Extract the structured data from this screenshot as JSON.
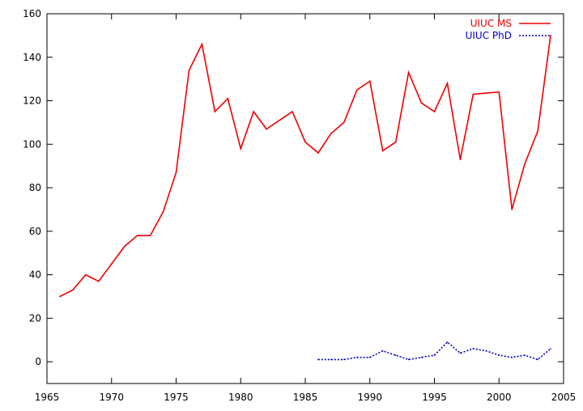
{
  "chart_data": {
    "type": "line",
    "title": "",
    "xlabel": "",
    "ylabel": "",
    "xlim": [
      1965,
      2005
    ],
    "ylim": [
      -10,
      160
    ],
    "grid": false,
    "legend_position": "top-right",
    "xticks": [
      1965,
      1970,
      1975,
      1980,
      1985,
      1990,
      1995,
      2000,
      2005
    ],
    "yticks": [
      0,
      20,
      40,
      60,
      80,
      100,
      120,
      140,
      160
    ],
    "series": [
      {
        "name": "UIUC MS",
        "color": "#ee0000",
        "style": "solid",
        "x": [
          1966,
          1967,
          1968,
          1969,
          1970,
          1971,
          1972,
          1973,
          1974,
          1975,
          1976,
          1977,
          1978,
          1979,
          1980,
          1981,
          1982,
          1983,
          1984,
          1985,
          1986,
          1987,
          1988,
          1989,
          1990,
          1991,
          1992,
          1993,
          1994,
          1995,
          1996,
          1997,
          1998,
          1999,
          2000,
          2001,
          2002,
          2003,
          2004
        ],
        "y": [
          30,
          33,
          40,
          37,
          45,
          53,
          58,
          58,
          69,
          87,
          134,
          146,
          115,
          121,
          98,
          115,
          107,
          111,
          115,
          101,
          96,
          105,
          110,
          125,
          129,
          97,
          101,
          133,
          119,
          115,
          128,
          93,
          123,
          123.5,
          124,
          70,
          91,
          106,
          150
        ]
      },
      {
        "name": "UIUC PhD",
        "color": "#0000cc",
        "style": "dotted",
        "x": [
          1986,
          1987,
          1988,
          1989,
          1990,
          1991,
          1992,
          1993,
          1994,
          1995,
          1996,
          1997,
          1998,
          1999,
          2000,
          2001,
          2002,
          2003,
          2004
        ],
        "y": [
          1,
          1,
          1,
          2,
          2,
          5,
          3,
          1,
          2,
          3,
          9,
          4,
          6,
          5,
          3,
          2,
          3,
          1,
          6
        ]
      }
    ]
  }
}
